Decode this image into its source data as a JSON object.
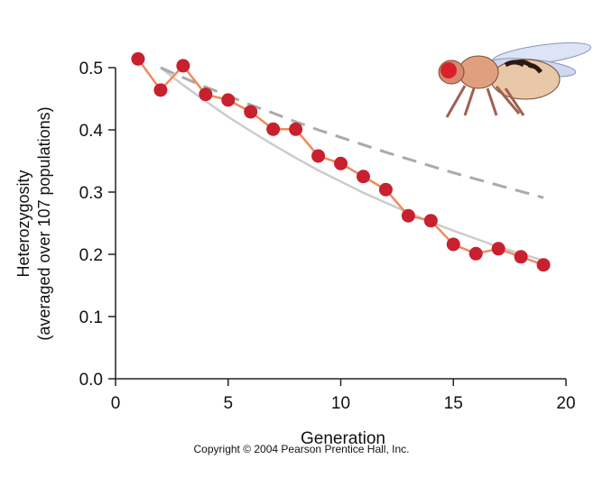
{
  "chart_data": {
    "type": "line",
    "title": "",
    "xlabel": "Generation",
    "ylabel_line1": "Heterozygosity",
    "ylabel_line2": "(averaged over 107 populations)",
    "xlim": [
      0,
      20
    ],
    "ylim": [
      0,
      0.5
    ],
    "xticks": [
      "0",
      "5",
      "10",
      "15",
      "20"
    ],
    "yticks": [
      "0.0",
      "0.1",
      "0.2",
      "0.3",
      "0.4",
      "0.5"
    ],
    "grid": false,
    "series": [
      {
        "style": "observed-points",
        "color": "#c8202f",
        "line_color": "#ef8a5e",
        "x": [
          1,
          2,
          3,
          4,
          5,
          6,
          7,
          8,
          9,
          10,
          11,
          12,
          13,
          14,
          15,
          16,
          17,
          18,
          19
        ],
        "y": [
          0.514,
          0.464,
          0.503,
          0.457,
          0.448,
          0.429,
          0.401,
          0.401,
          0.358,
          0.346,
          0.325,
          0.304,
          0.262,
          0.254,
          0.216,
          0.201,
          0.209,
          0.196,
          0.183
        ]
      },
      {
        "style": "dashed-expected",
        "color": "#aaaaaa",
        "x": [
          2,
          3,
          4,
          5,
          6,
          7,
          8,
          9,
          10,
          11,
          12,
          13,
          14,
          15,
          16,
          17,
          18,
          19
        ],
        "y": [
          0.5,
          0.484,
          0.469,
          0.455,
          0.44,
          0.427,
          0.413,
          0.4,
          0.388,
          0.376,
          0.364,
          0.353,
          0.342,
          0.331,
          0.321,
          0.311,
          0.301,
          0.291
        ]
      },
      {
        "style": "solid-expected",
        "color": "#cccccc",
        "x": [
          2,
          3,
          4,
          5,
          6,
          7,
          8,
          9,
          10,
          11,
          12,
          13,
          14,
          15,
          16,
          17,
          18,
          19
        ],
        "y": [
          0.5,
          0.472,
          0.446,
          0.421,
          0.398,
          0.376,
          0.355,
          0.335,
          0.317,
          0.299,
          0.283,
          0.267,
          0.252,
          0.238,
          0.225,
          0.212,
          0.201,
          0.19
        ]
      }
    ]
  },
  "copyright": "Copyright © 2004 Pearson Prentice Hall, Inc.",
  "illustration": "fruit-fly"
}
